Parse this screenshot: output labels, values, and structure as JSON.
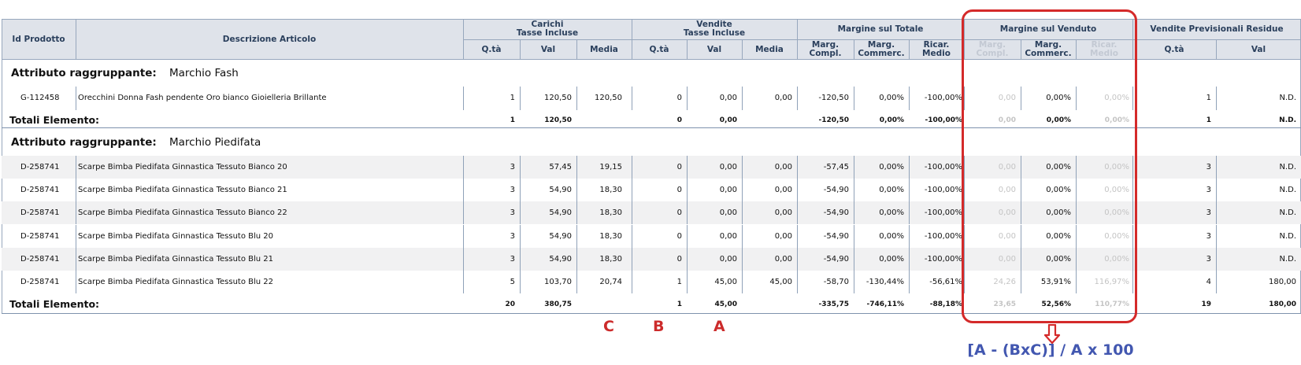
{
  "header": {
    "id_prodotto": "Id Prodotto",
    "descrizione": "Descrizione Articolo",
    "carichi": "Carichi\nTasse Incluse",
    "vendite": "Vendite\nTasse Incluse",
    "margine_totale": "Margine sul Totale",
    "margine_venduto": "Margine sul Venduto",
    "vendite_prev": "Vendite Previsionali Residue",
    "sub": {
      "qta": "Q.tà",
      "val": "Val",
      "media": "Media",
      "marg_compl": "Marg.\nCompl.",
      "marg_commerc": "Marg.\nCommerc.",
      "ricar_medio": "Ricar. Medio"
    }
  },
  "groups": [
    {
      "label": "Attributo raggruppante:",
      "name": "Marchio Fash",
      "rows": [
        {
          "id": "G-112458",
          "desc": "Orecchini Donna Fash pendente Oro bianco Gioielleria Brillante",
          "c_qta": "1",
          "c_val": "120,50",
          "c_media": "120,50",
          "v_qta": "0",
          "v_val": "0,00",
          "v_media": "0,00",
          "mt_compl": "-120,50",
          "mt_commerc": "0,00%",
          "mt_ricar": "-100,00%",
          "mv_compl": "0,00",
          "mv_commerc": "0,00%",
          "mv_ricar": "0,00%",
          "p_qta": "1",
          "p_val": "N.D."
        }
      ],
      "total": {
        "label": "Totali Elemento:",
        "c_qta": "1",
        "c_val": "120,50",
        "v_qta": "0",
        "v_val": "0,00",
        "mt_compl": "-120,50",
        "mt_commerc": "0,00%",
        "mt_ricar": "-100,00%",
        "mv_compl": "0,00",
        "mv_commerc": "0,00%",
        "mv_ricar": "0,00%",
        "p_qta": "1",
        "p_val": "N.D."
      }
    },
    {
      "label": "Attributo raggruppante:",
      "name": "Marchio Piedifata",
      "rows": [
        {
          "id": "D-258741",
          "desc": "Scarpe Bimba Piedifata Ginnastica Tessuto Bianco 20",
          "c_qta": "3",
          "c_val": "57,45",
          "c_media": "19,15",
          "v_qta": "0",
          "v_val": "0,00",
          "v_media": "0,00",
          "mt_compl": "-57,45",
          "mt_commerc": "0,00%",
          "mt_ricar": "-100,00%",
          "mv_compl": "0,00",
          "mv_commerc": "0,00%",
          "mv_ricar": "0,00%",
          "p_qta": "3",
          "p_val": "N.D."
        },
        {
          "id": "D-258741",
          "desc": "Scarpe Bimba Piedifata Ginnastica Tessuto Bianco 21",
          "c_qta": "3",
          "c_val": "54,90",
          "c_media": "18,30",
          "v_qta": "0",
          "v_val": "0,00",
          "v_media": "0,00",
          "mt_compl": "-54,90",
          "mt_commerc": "0,00%",
          "mt_ricar": "-100,00%",
          "mv_compl": "0,00",
          "mv_commerc": "0,00%",
          "mv_ricar": "0,00%",
          "p_qta": "3",
          "p_val": "N.D."
        },
        {
          "id": "D-258741",
          "desc": "Scarpe Bimba Piedifata Ginnastica Tessuto Bianco 22",
          "c_qta": "3",
          "c_val": "54,90",
          "c_media": "18,30",
          "v_qta": "0",
          "v_val": "0,00",
          "v_media": "0,00",
          "mt_compl": "-54,90",
          "mt_commerc": "0,00%",
          "mt_ricar": "-100,00%",
          "mv_compl": "0,00",
          "mv_commerc": "0,00%",
          "mv_ricar": "0,00%",
          "p_qta": "3",
          "p_val": "N.D."
        },
        {
          "id": "D-258741",
          "desc": "Scarpe Bimba Piedifata Ginnastica Tessuto Blu 20",
          "c_qta": "3",
          "c_val": "54,90",
          "c_media": "18,30",
          "v_qta": "0",
          "v_val": "0,00",
          "v_media": "0,00",
          "mt_compl": "-54,90",
          "mt_commerc": "0,00%",
          "mt_ricar": "-100,00%",
          "mv_compl": "0,00",
          "mv_commerc": "0,00%",
          "mv_ricar": "0,00%",
          "p_qta": "3",
          "p_val": "N.D."
        },
        {
          "id": "D-258741",
          "desc": "Scarpe Bimba Piedifata Ginnastica Tessuto Blu 21",
          "c_qta": "3",
          "c_val": "54,90",
          "c_media": "18,30",
          "v_qta": "0",
          "v_val": "0,00",
          "v_media": "0,00",
          "mt_compl": "-54,90",
          "mt_commerc": "0,00%",
          "mt_ricar": "-100,00%",
          "mv_compl": "0,00",
          "mv_commerc": "0,00%",
          "mv_ricar": "0,00%",
          "p_qta": "3",
          "p_val": "N.D."
        },
        {
          "id": "D-258741",
          "desc": "Scarpe Bimba Piedifata Ginnastica Tessuto Blu 22",
          "c_qta": "5",
          "c_val": "103,70",
          "c_media": "20,74",
          "v_qta": "1",
          "v_val": "45,00",
          "v_media": "45,00",
          "mt_compl": "-58,70",
          "mt_commerc": "-130,44%",
          "mt_ricar": "-56,61%",
          "mv_compl": "24,26",
          "mv_commerc": "53,91%",
          "mv_ricar": "116,97%",
          "p_qta": "4",
          "p_val": "180,00"
        }
      ],
      "total": {
        "label": "Totali Elemento:",
        "c_qta": "20",
        "c_val": "380,75",
        "v_qta": "1",
        "v_val": "45,00",
        "mt_compl": "-335,75",
        "mt_commerc": "-746,11%",
        "mt_ricar": "-88,18%",
        "mv_compl": "23,65",
        "mv_commerc": "52,56%",
        "mv_ricar": "110,77%",
        "p_qta": "19",
        "p_val": "180,00"
      }
    }
  ],
  "annotations": {
    "letter_c": "C",
    "letter_b": "B",
    "letter_a": "A",
    "formula": "[A - (BxC)] / A x 100",
    "highlight_color": "#d42a2a",
    "formula_color": "#4257b0"
  }
}
